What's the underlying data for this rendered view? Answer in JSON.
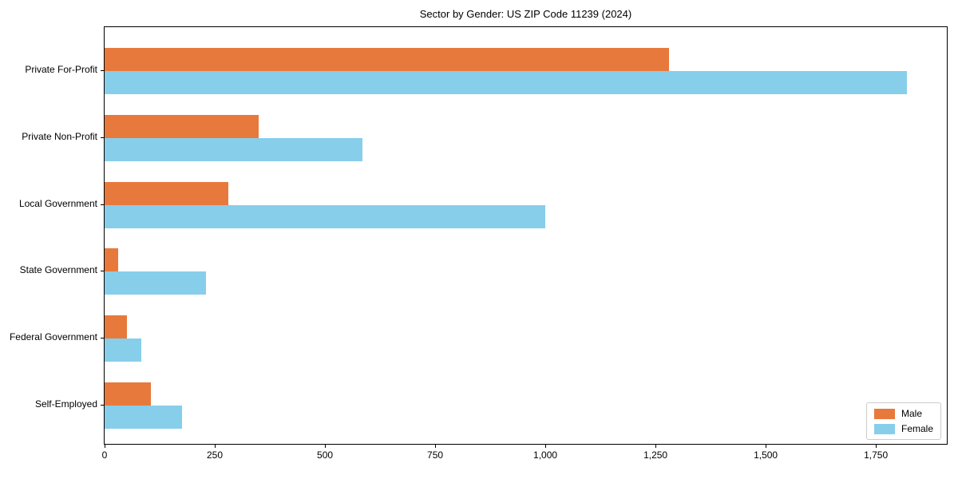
{
  "title": "Sector by Gender: US ZIP Code 11239 (2024)",
  "chart_data": {
    "type": "bar",
    "orientation": "horizontal",
    "title": "Sector by Gender: US ZIP Code 11239 (2024)",
    "xlabel": "",
    "ylabel": "",
    "categories": [
      "Private For-Profit",
      "Private Non-Profit",
      "Local Government",
      "State Government",
      "Federal Government",
      "Self-Employed"
    ],
    "series": [
      {
        "name": "Male",
        "color": "#e8793c",
        "values": [
          1280,
          350,
          280,
          30,
          50,
          105
        ]
      },
      {
        "name": "Female",
        "color": "#87ceeb",
        "values": [
          1820,
          585,
          1000,
          230,
          83,
          175
        ]
      }
    ],
    "xlim": [
      0,
      1911
    ],
    "xticks": [
      0,
      250,
      500,
      750,
      1000,
      1250,
      1500,
      1750
    ],
    "xtick_labels": [
      "0",
      "250",
      "500",
      "750",
      "1,000",
      "1,250",
      "1,500",
      "1,750"
    ],
    "grid": false,
    "legend": {
      "position": "lower right",
      "entries": [
        "Male",
        "Female"
      ]
    },
    "colors": {
      "male": "#e8793c",
      "female": "#87ceeb",
      "axis": "#000000",
      "background": "#ffffff"
    }
  }
}
